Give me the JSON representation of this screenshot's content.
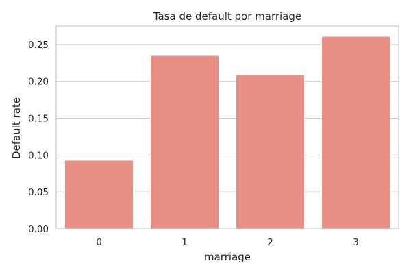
{
  "chart_data": {
    "type": "bar",
    "title": "Tasa de default por marriage",
    "xlabel": "marriage",
    "ylabel": "Default rate",
    "categories": [
      "0",
      "1",
      "2",
      "3"
    ],
    "values": [
      0.093,
      0.235,
      0.209,
      0.261
    ],
    "ylim": [
      0,
      0.275
    ],
    "yticks": [
      0.0,
      0.05,
      0.1,
      0.15,
      0.2,
      0.25
    ],
    "ytick_labels": [
      "0.00",
      "0.05",
      "0.10",
      "0.15",
      "0.20",
      "0.25"
    ],
    "grid": "horizontal",
    "legend": "none",
    "colors": {
      "bar": "#e98e82",
      "grid": "#cccccc",
      "frame": "#cccccc",
      "text": "#262626",
      "background": "#ffffff"
    }
  }
}
